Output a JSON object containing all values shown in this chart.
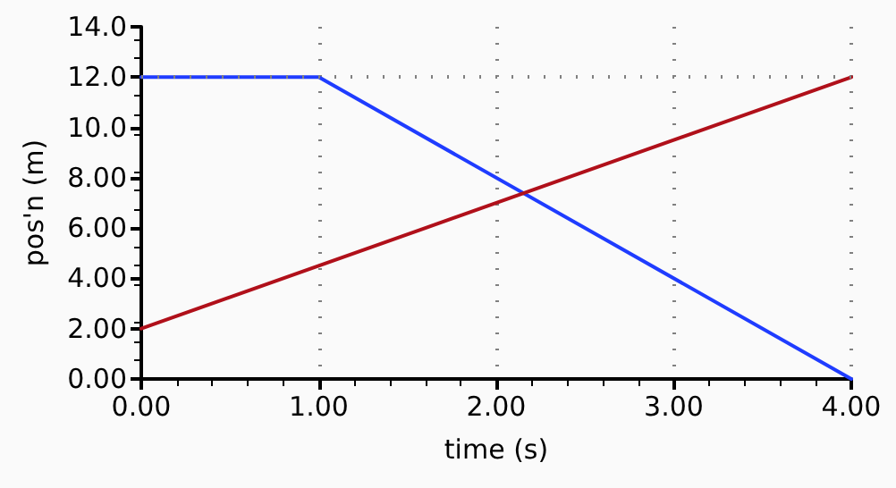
{
  "chart_data": {
    "type": "line",
    "xlabel": "time (s)",
    "ylabel": "pos'n (m)",
    "xlim": [
      0,
      4
    ],
    "xticks": [
      {
        "value": 0,
        "label": "0.00"
      },
      {
        "value": 1,
        "label": "1.00"
      },
      {
        "value": 2,
        "label": "2.00"
      },
      {
        "value": 3,
        "label": "3.00"
      },
      {
        "value": 4,
        "label": "4.00"
      }
    ],
    "ylim": [
      0,
      14
    ],
    "yticks": [
      {
        "value": 0,
        "label": "0.00"
      },
      {
        "value": 2,
        "label": "2.00"
      },
      {
        "value": 4,
        "label": "4.00"
      },
      {
        "value": 6,
        "label": "6.00"
      },
      {
        "value": 8,
        "label": "8.00"
      },
      {
        "value": 10,
        "label": "10.0"
      },
      {
        "value": 12,
        "label": "12.0"
      },
      {
        "value": 14,
        "label": "14.0"
      }
    ],
    "grid": "x",
    "marker": "none",
    "line_style": "solid",
    "ref_lines": [
      {
        "axis": "y",
        "value": 12,
        "label": null,
        "color": "#808080",
        "line_style": "dotted"
      }
    ],
    "series": [
      {
        "color": "#1f3cff",
        "x": [
          0,
          1,
          4
        ],
        "values": [
          12,
          12,
          0
        ]
      },
      {
        "color": "#b0101a",
        "x": [
          0,
          4
        ],
        "values": [
          2,
          12
        ]
      }
    ]
  }
}
